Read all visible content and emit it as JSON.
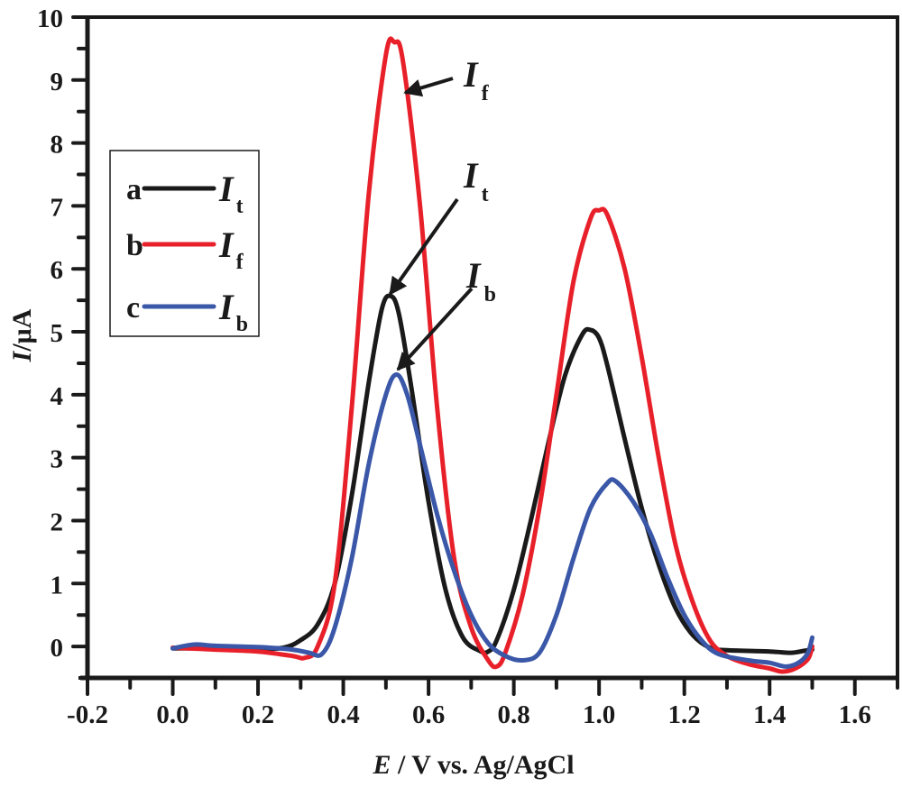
{
  "chart_data": {
    "type": "line",
    "title": "",
    "xlabel_italic": "E",
    "xlabel_rest": " / V vs. Ag/AgCl",
    "ylabel_italic": "I",
    "ylabel_rest": "/μA",
    "xlim": [
      -0.2,
      1.7
    ],
    "ylim": [
      -0.5,
      10
    ],
    "x_ticks": [
      "-0.2",
      "0.0",
      "0.2",
      "0.4",
      "0.6",
      "0.8",
      "1.0",
      "1.2",
      "1.4",
      "1.6"
    ],
    "x_tick_values": [
      -0.2,
      0.0,
      0.2,
      0.4,
      0.6,
      0.8,
      1.0,
      1.2,
      1.4,
      1.6
    ],
    "y_ticks": [
      "0",
      "1",
      "2",
      "3",
      "4",
      "5",
      "6",
      "7",
      "8",
      "9",
      "10"
    ],
    "y_tick_values": [
      0,
      1,
      2,
      3,
      4,
      5,
      6,
      7,
      8,
      9,
      10
    ],
    "grid": false,
    "legend_position": "upper-left",
    "legend": [
      {
        "letter": "a",
        "symbol": "I",
        "sub": "t",
        "color": "#1a1a1a"
      },
      {
        "letter": "b",
        "symbol": "I",
        "sub": "f",
        "color": "#e8202a"
      },
      {
        "letter": "c",
        "symbol": "I",
        "sub": "b",
        "color": "#3a57a8"
      }
    ],
    "annotations": [
      {
        "symbol": "I",
        "sub": "f",
        "target": [
          0.545,
          8.8
        ]
      },
      {
        "symbol": "I",
        "sub": "t",
        "target": [
          0.51,
          5.6
        ]
      },
      {
        "symbol": "I",
        "sub": "b",
        "target": [
          0.528,
          4.4
        ]
      }
    ],
    "series": [
      {
        "name": "a - It",
        "color": "#1a1a1a",
        "x": [
          0.0,
          0.1,
          0.2,
          0.26,
          0.3,
          0.34,
          0.38,
          0.42,
          0.46,
          0.49,
          0.51,
          0.53,
          0.56,
          0.6,
          0.64,
          0.68,
          0.72,
          0.74,
          0.76,
          0.8,
          0.84,
          0.88,
          0.92,
          0.96,
          0.98,
          1.0,
          1.02,
          1.06,
          1.1,
          1.14,
          1.18,
          1.22,
          1.26,
          1.3,
          1.4,
          1.45,
          1.48,
          1.5
        ],
        "y": [
          -0.03,
          -0.03,
          -0.04,
          -0.02,
          0.1,
          0.35,
          1.0,
          2.4,
          4.2,
          5.35,
          5.57,
          5.3,
          4.1,
          2.3,
          0.9,
          0.15,
          -0.07,
          -0.08,
          0.1,
          0.9,
          2.0,
          3.2,
          4.3,
          4.95,
          5.03,
          4.9,
          4.45,
          3.3,
          2.2,
          1.3,
          0.6,
          0.18,
          -0.02,
          -0.06,
          -0.08,
          -0.1,
          -0.07,
          -0.05
        ]
      },
      {
        "name": "b - If",
        "color": "#e8202a",
        "x": [
          0.0,
          0.1,
          0.2,
          0.28,
          0.31,
          0.34,
          0.38,
          0.42,
          0.46,
          0.5,
          0.52,
          0.54,
          0.58,
          0.62,
          0.66,
          0.7,
          0.74,
          0.76,
          0.78,
          0.82,
          0.86,
          0.9,
          0.94,
          0.98,
          1.0,
          1.02,
          1.06,
          1.1,
          1.14,
          1.18,
          1.22,
          1.26,
          1.3,
          1.35,
          1.4,
          1.43,
          1.46,
          1.49,
          1.5
        ],
        "y": [
          -0.02,
          -0.05,
          -0.08,
          -0.15,
          -0.18,
          0.0,
          1.0,
          3.8,
          7.2,
          9.4,
          9.6,
          9.3,
          7.0,
          3.8,
          1.4,
          0.3,
          -0.22,
          -0.32,
          -0.1,
          0.8,
          2.2,
          4.0,
          5.8,
          6.8,
          6.93,
          6.85,
          6.0,
          4.6,
          3.0,
          1.6,
          0.7,
          0.1,
          -0.15,
          -0.28,
          -0.35,
          -0.4,
          -0.35,
          -0.2,
          0.0
        ]
      },
      {
        "name": "c - Ib",
        "color": "#3a57a8",
        "x": [
          0.0,
          0.05,
          0.1,
          0.2,
          0.28,
          0.32,
          0.35,
          0.38,
          0.42,
          0.46,
          0.5,
          0.525,
          0.55,
          0.58,
          0.62,
          0.66,
          0.7,
          0.74,
          0.78,
          0.82,
          0.86,
          0.9,
          0.94,
          0.98,
          1.02,
          1.04,
          1.08,
          1.12,
          1.16,
          1.2,
          1.24,
          1.28,
          1.35,
          1.4,
          1.44,
          1.47,
          1.49,
          1.5
        ],
        "y": [
          -0.03,
          0.03,
          0.01,
          -0.01,
          -0.05,
          -0.1,
          -0.12,
          0.3,
          1.4,
          2.9,
          4.0,
          4.32,
          4.0,
          3.2,
          2.1,
          1.2,
          0.5,
          0.05,
          -0.15,
          -0.22,
          -0.1,
          0.5,
          1.4,
          2.2,
          2.6,
          2.62,
          2.3,
          1.8,
          1.1,
          0.5,
          0.1,
          -0.12,
          -0.22,
          -0.26,
          -0.32,
          -0.25,
          -0.1,
          0.14
        ]
      }
    ]
  }
}
